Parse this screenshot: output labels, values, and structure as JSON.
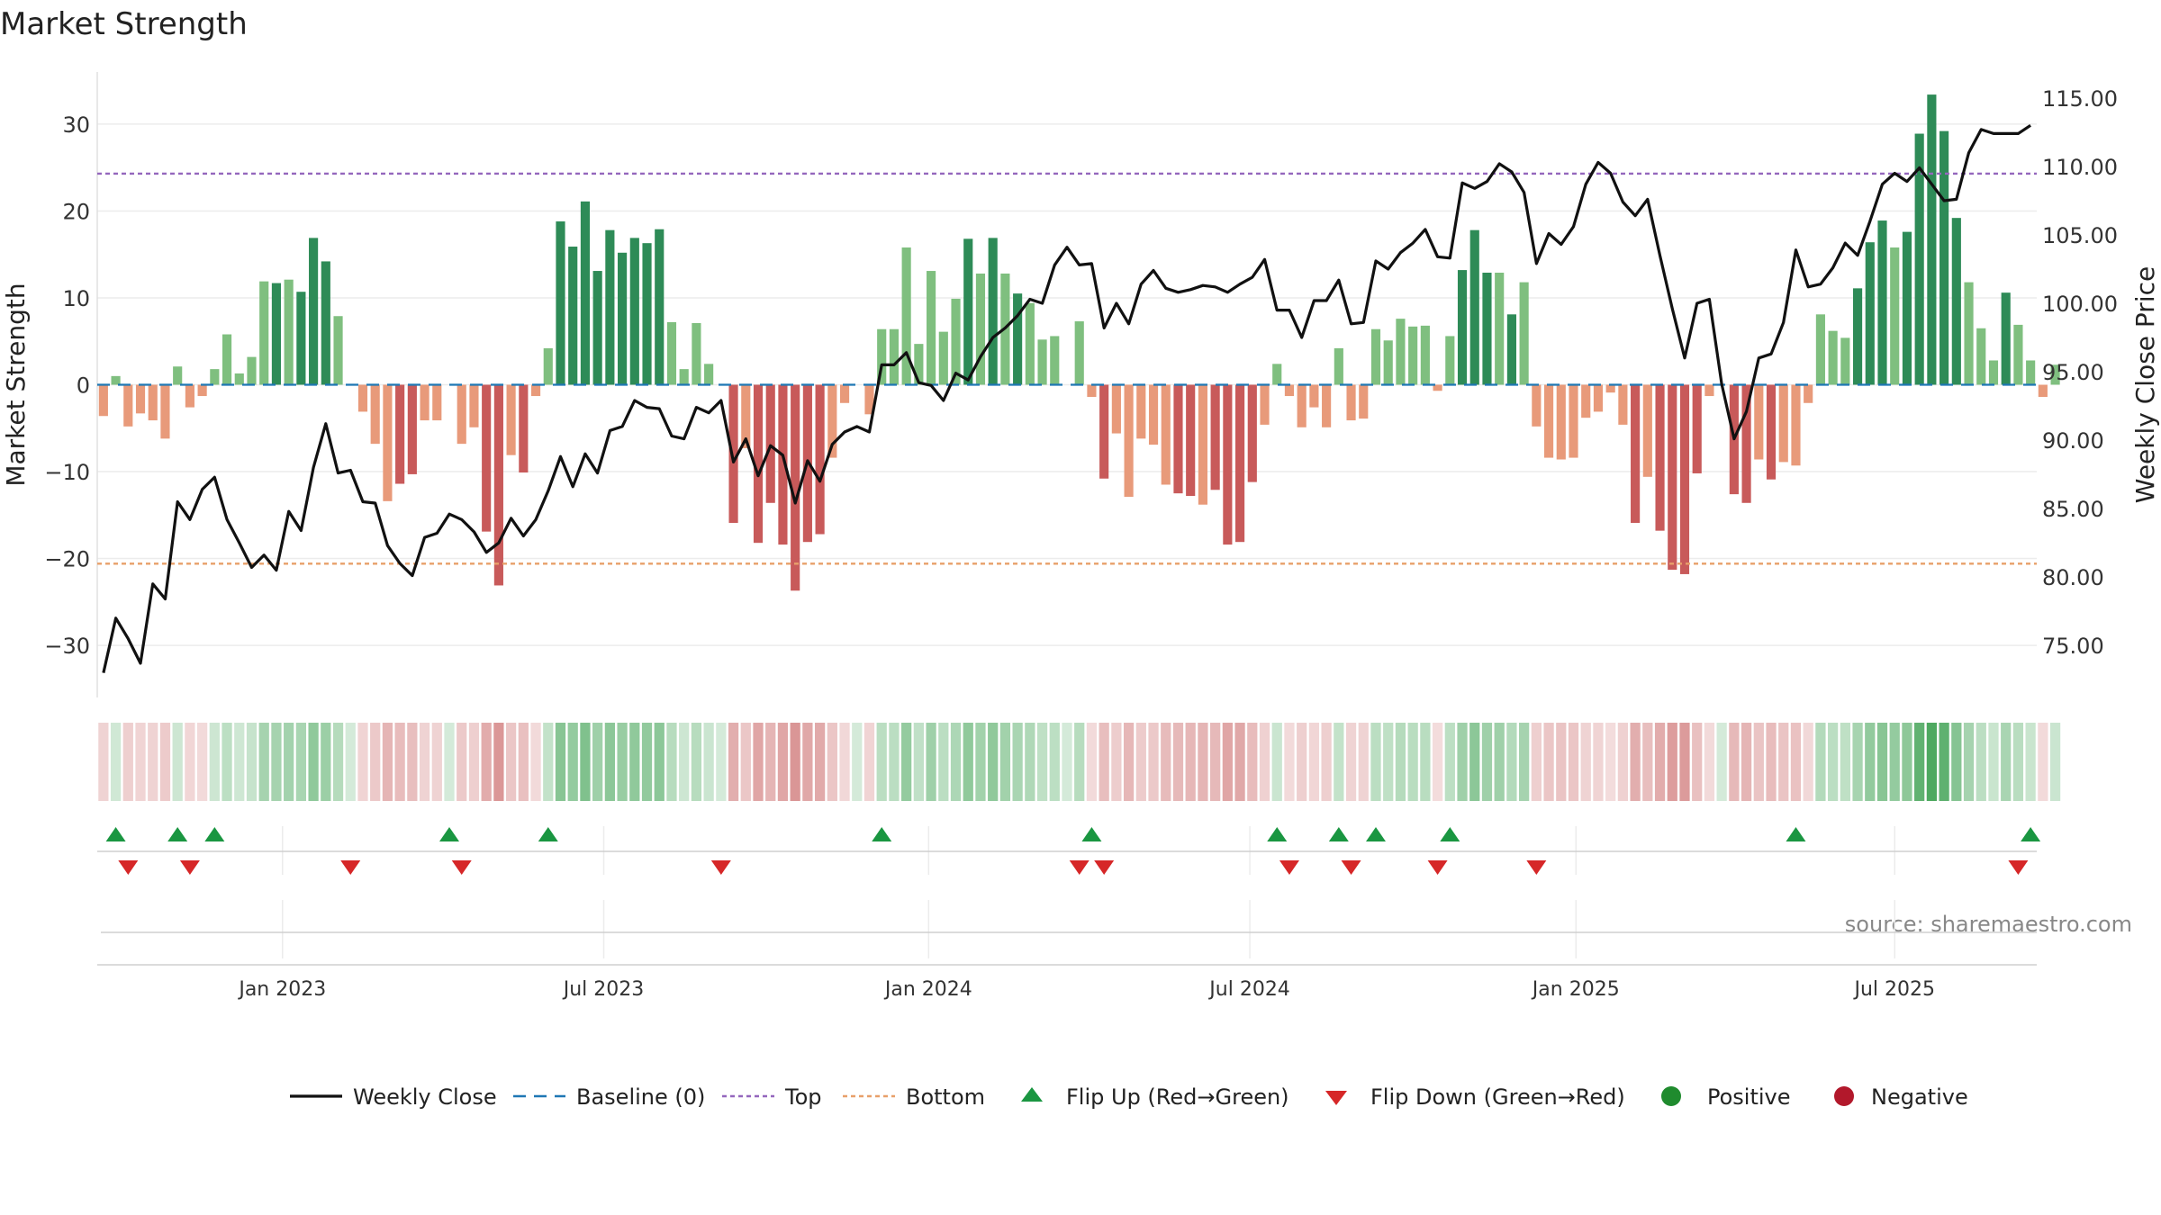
{
  "colors": {
    "strong_green": "#2e8b57",
    "light_green": "#7fbf7f",
    "strong_red": "#c85a5a",
    "light_red": "#e89a7a",
    "line": "#111111",
    "baseline": "#1f77b4",
    "top": "#9467bd",
    "bottom": "#e8a06a",
    "flip_up": "#1a9641",
    "flip_down": "#d62728",
    "positive": "#1f8b2e",
    "negative": "#b2182b"
  },
  "chart_data": {
    "type": "bar+line",
    "title": "Market Strength",
    "ylabel": "Market Strength",
    "y2label": "Weekly Close Price",
    "ylim": [
      -36,
      36
    ],
    "y2lim": [
      71.2,
      116.9
    ],
    "xlim": [
      0,
      157
    ],
    "yticks": [
      {
        "value": 30,
        "label": "30"
      },
      {
        "value": 20,
        "label": "20"
      },
      {
        "value": 10,
        "label": "10"
      },
      {
        "value": 0,
        "label": "0"
      },
      {
        "value": -10,
        "label": "−10"
      },
      {
        "value": -20,
        "label": "−20"
      },
      {
        "value": -30,
        "label": "−30"
      }
    ],
    "y2ticks": [
      {
        "value": 115,
        "label": "115.00"
      },
      {
        "value": 110,
        "label": "110.00"
      },
      {
        "value": 105,
        "label": "105.00"
      },
      {
        "value": 100,
        "label": "100.00"
      },
      {
        "value": 95,
        "label": "95.00"
      },
      {
        "value": 90,
        "label": "90.00"
      },
      {
        "value": 85,
        "label": "85.00"
      },
      {
        "value": 80,
        "label": "80.00"
      },
      {
        "value": 75,
        "label": "75.00"
      }
    ],
    "xticks": [
      {
        "index": 14.5,
        "label": "Jan 2023"
      },
      {
        "index": 40.5,
        "label": "Jul 2023"
      },
      {
        "index": 66.8,
        "label": "Jan 2024"
      },
      {
        "index": 92.8,
        "label": "Jul 2024"
      },
      {
        "index": 119.2,
        "label": "Jan 2025"
      },
      {
        "index": 145.0,
        "label": "Jul 2025"
      }
    ],
    "top_level": 24.3,
    "bottom_level": -20.6,
    "strength": [
      -3.6,
      1,
      -4.8,
      -3.3,
      -4.1,
      -6.2,
      2.1,
      -2.6,
      -1.3,
      1.8,
      5.8,
      1.3,
      3.2,
      11.9,
      11.7,
      12.1,
      10.7,
      16.9,
      14.2,
      7.9,
      0,
      -3.1,
      -6.8,
      -13.4,
      -11.4,
      -10.3,
      -4.1,
      -4.1,
      0,
      -6.8,
      -4.9,
      -16.9,
      -23.1,
      -8.1,
      -10.1,
      -1.3,
      4.2,
      18.8,
      15.9,
      21.1,
      13.1,
      17.8,
      15.2,
      16.9,
      16.3,
      17.9,
      7.2,
      1.8,
      7.1,
      2.4,
      0,
      -15.9,
      -7.3,
      -18.2,
      -13.6,
      -18.4,
      -23.7,
      -18.1,
      -17.2,
      -8.4,
      -2.1,
      0,
      -3.4,
      6.4,
      6.4,
      15.8,
      4.7,
      13.1,
      6.1,
      9.9,
      16.8,
      12.8,
      16.9,
      12.8,
      10.5,
      9.4,
      5.2,
      5.6,
      0,
      7.3,
      -1.4,
      -10.8,
      -5.6,
      -12.9,
      -6.2,
      -6.9,
      -11.5,
      -12.5,
      -12.8,
      -13.8,
      -12.1,
      -18.4,
      -18.1,
      -11.2,
      -4.6,
      2.4,
      -1.3,
      -4.9,
      -2.6,
      -4.9,
      4.2,
      -4.1,
      -3.9,
      6.4,
      5.1,
      7.6,
      6.7,
      6.8,
      -0.7,
      5.6,
      13.2,
      17.8,
      12.9,
      12.9,
      8.1,
      11.8,
      -4.8,
      -8.4,
      -8.6,
      -8.4,
      -3.8,
      -3.1,
      -0.9,
      -4.6,
      -15.9,
      -10.6,
      -16.8,
      -21.3,
      -21.8,
      -10.2,
      -1.3,
      0,
      -12.6,
      -13.6,
      -8.6,
      -10.9,
      -8.9,
      -9.3,
      -2.1,
      8.1,
      6.2,
      5.4,
      11.1,
      16.4,
      18.9,
      15.8,
      17.6,
      28.9,
      33.4,
      29.2,
      19.2,
      11.8,
      6.5,
      2.8,
      10.6,
      6.9,
      2.8,
      -1.4,
      2.3
    ],
    "price": [
      73.0,
      77.0,
      75.5,
      73.7,
      79.5,
      78.4,
      85.5,
      84.2,
      86.4,
      87.3,
      84.2,
      82.5,
      80.7,
      81.6,
      80.5,
      84.8,
      83.4,
      88.0,
      91.2,
      87.6,
      87.8,
      85.5,
      85.4,
      82.3,
      81.0,
      80.1,
      82.9,
      83.2,
      84.6,
      84.2,
      83.3,
      81.8,
      82.5,
      84.3,
      83.0,
      84.2,
      86.3,
      88.8,
      86.6,
      89.0,
      87.6,
      90.7,
      91.0,
      92.9,
      92.4,
      92.3,
      90.3,
      90.1,
      92.4,
      92.0,
      92.9,
      88.4,
      90.1,
      87.4,
      89.6,
      88.9,
      85.4,
      88.5,
      87.0,
      89.7,
      90.6,
      91.0,
      90.6,
      95.5,
      95.5,
      96.4,
      94.2,
      94.0,
      92.9,
      94.9,
      94.4,
      96.1,
      97.5,
      98.2,
      99.1,
      100.3,
      100.0,
      102.8,
      104.1,
      102.8,
      102.9,
      98.2,
      100.0,
      98.5,
      101.4,
      102.4,
      101.1,
      100.8,
      101.0,
      101.3,
      101.2,
      100.8,
      101.4,
      101.9,
      103.2,
      99.5,
      99.5,
      97.5,
      100.2,
      100.2,
      101.7,
      98.5,
      98.6,
      103.1,
      102.5,
      103.7,
      104.4,
      105.4,
      103.4,
      103.3,
      108.8,
      108.4,
      108.9,
      110.2,
      109.6,
      108.1,
      102.9,
      105.1,
      104.3,
      105.6,
      108.7,
      110.3,
      109.5,
      107.4,
      106.4,
      107.6,
      103.5,
      99.6,
      96.0,
      100.0,
      100.3,
      94.1,
      90.1,
      92.1,
      96.0,
      96.3,
      98.6,
      103.9,
      101.2,
      101.4,
      102.6,
      104.4,
      103.5,
      106.0,
      108.7,
      109.5,
      108.9,
      109.9,
      108.7,
      107.5,
      107.6,
      111.0,
      112.7,
      112.4,
      112.4,
      112.4,
      113.0
    ],
    "flip_up": [
      1,
      6,
      9,
      28,
      36,
      63,
      80,
      95,
      100,
      103,
      109,
      137,
      156
    ],
    "flip_down": [
      2,
      7,
      20,
      29,
      50,
      79,
      81,
      96,
      101,
      108,
      116,
      155
    ]
  },
  "strip_label": "",
  "source_text": "source: sharemaestro.com",
  "legend": [
    {
      "key": "line",
      "label": "Weekly Close"
    },
    {
      "key": "baseline",
      "label": "Baseline (0)"
    },
    {
      "key": "top",
      "label": "Top"
    },
    {
      "key": "bottom",
      "label": "Bottom"
    },
    {
      "key": "flip_up",
      "label": "Flip Up (Red→Green)"
    },
    {
      "key": "flip_down",
      "label": "Flip Down (Green→Red)"
    },
    {
      "key": "positive",
      "label": "Positive"
    },
    {
      "key": "negative",
      "label": "Negative"
    }
  ]
}
